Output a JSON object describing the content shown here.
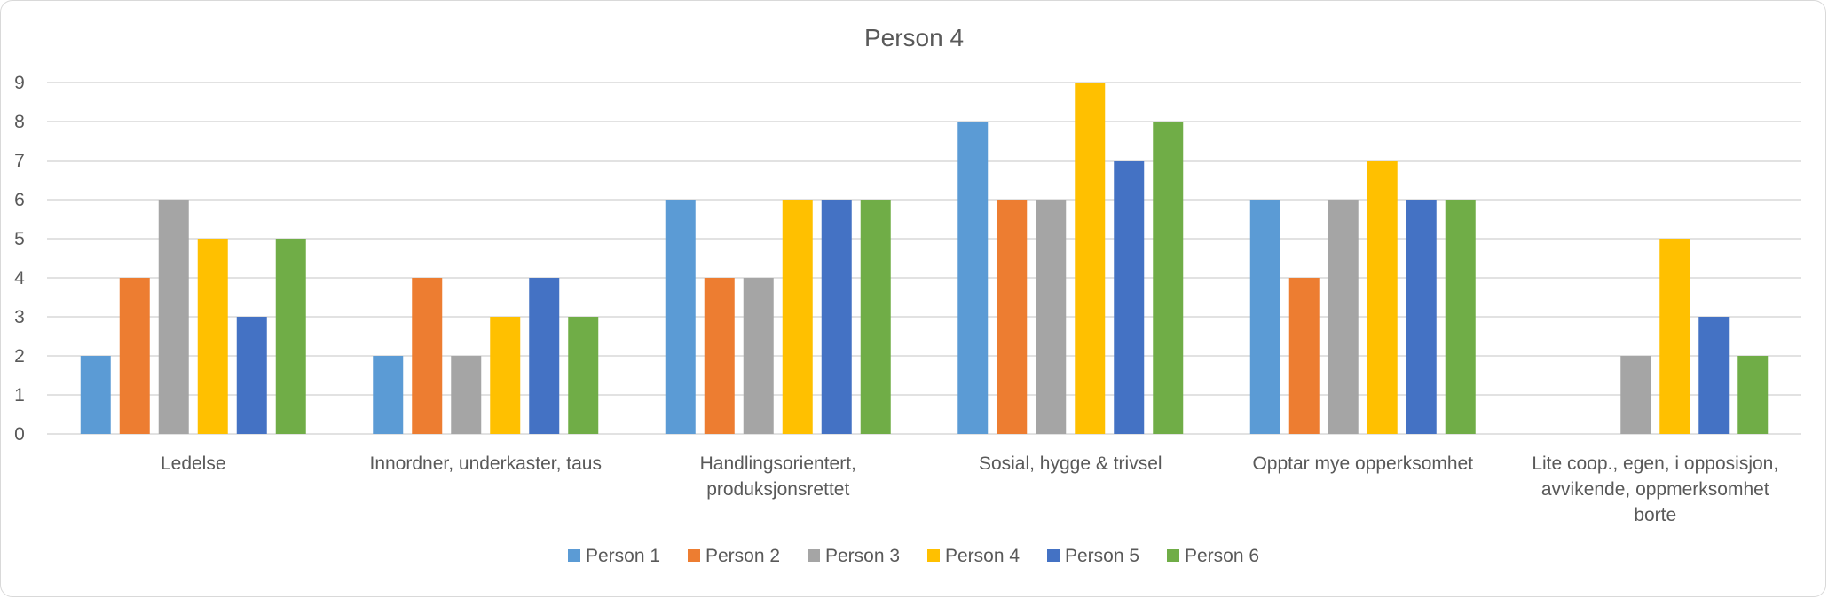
{
  "chart_data": {
    "type": "bar",
    "title": "Person 4",
    "xlabel": "",
    "ylabel": "",
    "ylim": [
      0,
      9
    ],
    "yticks": [
      0,
      1,
      2,
      3,
      4,
      5,
      6,
      7,
      8,
      9
    ],
    "grid": true,
    "legend_position": "bottom",
    "categories": [
      [
        "Ledelse"
      ],
      [
        "Innordner, underkaster, taus"
      ],
      [
        "Handlingsorientert,",
        "produksjonsrettet"
      ],
      [
        "Sosial, hygge & trivsel"
      ],
      [
        "Opptar mye opperksomhet"
      ],
      [
        "Lite coop., egen, i opposisjon,",
        "avvikende, oppmerksomhet",
        "borte"
      ]
    ],
    "series": [
      {
        "name": "Person 1",
        "color": "#5b9bd5",
        "values": [
          2,
          2,
          6,
          8,
          6,
          0
        ]
      },
      {
        "name": "Person 2",
        "color": "#ed7d31",
        "values": [
          4,
          4,
          4,
          6,
          4,
          0
        ]
      },
      {
        "name": "Person 3",
        "color": "#a5a5a5",
        "values": [
          6,
          2,
          4,
          6,
          6,
          2
        ]
      },
      {
        "name": "Person 4",
        "color": "#ffc000",
        "values": [
          5,
          3,
          6,
          9,
          7,
          5
        ]
      },
      {
        "name": "Person 5",
        "color": "#4472c4",
        "values": [
          3,
          4,
          6,
          7,
          6,
          3
        ]
      },
      {
        "name": "Person 6",
        "color": "#70ad47",
        "values": [
          5,
          3,
          6,
          8,
          6,
          2
        ]
      }
    ]
  }
}
